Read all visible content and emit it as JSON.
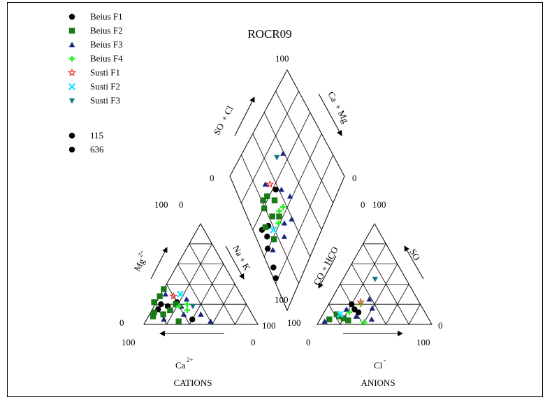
{
  "chart_data": {
    "type": "scatter",
    "subtype": "piper-diagram",
    "title": "ROCR09",
    "legend": {
      "placement": "top-left",
      "entries": [
        {
          "name": "Beius F1",
          "marker": "circle",
          "color": "#000000"
        },
        {
          "name": "Beius F2",
          "marker": "square",
          "color": "#1a7a1a"
        },
        {
          "name": "Beius F3",
          "marker": "triangle",
          "color": "#1a237e"
        },
        {
          "name": "Beius F4",
          "marker": "plus",
          "color": "#22ee22"
        },
        {
          "name": "Susti F1",
          "marker": "star",
          "color": "#ee2222"
        },
        {
          "name": "Susti F2",
          "marker": "x",
          "color": "#22e0ff"
        },
        {
          "name": "Susti F3",
          "marker": "triangle-down",
          "color": "#0f7a7a"
        },
        {
          "name": "115",
          "marker": "circle",
          "color": "#000000"
        },
        {
          "name": "636",
          "marker": "circle",
          "color": "#000000"
        }
      ]
    },
    "axis_labels": {
      "mg": "Mg",
      "mg_sup": "2+",
      "nak": "Na  + K",
      "ca": "Ca",
      "ca_sup": "2+",
      "cations": "CATIONS",
      "co3": "CO",
      "co3_tail": " + HCO",
      "so4": "SO",
      "cl": "Cl",
      "cl_sup": "-",
      "anions": "ANIONS",
      "so4cl": "SO",
      "so4cl_tail": " + Cl",
      "camg": "Ca",
      "camg_tail": " + Mg"
    },
    "tick_labels": {
      "cat_top": "100",
      "cat_top2": "0",
      "cat_left": "0",
      "cat_bottom_left": "100",
      "cat_bottom_right": "0",
      "cat_right": "100",
      "an_top": "0",
      "an_top2": "100",
      "an_left": "100",
      "an_left2": "100",
      "an_bottom_left": "0",
      "an_bottom_right": "100",
      "an_right": "0",
      "dia_top": "100",
      "dia_left": "0",
      "dia_right": "0"
    },
    "grid": true,
    "cation_points": [
      {
        "series": "Beius F1",
        "ca": 80,
        "mg": 15
      },
      {
        "series": "Beius F1",
        "ca": 70,
        "mg": 18
      },
      {
        "series": "Beius F1",
        "ca": 75,
        "mg": 20
      },
      {
        "series": "Beius F1",
        "ca": 60,
        "mg": 22
      },
      {
        "series": "Beius F1",
        "ca": 55,
        "mg": 5
      },
      {
        "series": "Beius F2",
        "ca": 88,
        "mg": 8
      },
      {
        "series": "Beius F2",
        "ca": 78,
        "mg": 10
      },
      {
        "series": "Beius F2",
        "ca": 80,
        "mg": 22
      },
      {
        "series": "Beius F2",
        "ca": 65,
        "mg": 35
      },
      {
        "series": "Beius F2",
        "ca": 72,
        "mg": 28
      },
      {
        "series": "Beius F2",
        "ca": 85,
        "mg": 12
      },
      {
        "series": "Beius F2",
        "ca": 70,
        "mg": 14
      },
      {
        "series": "Beius F2",
        "ca": 68,
        "mg": 3
      },
      {
        "series": "Beius F2",
        "ca": 62,
        "mg": 20
      },
      {
        "series": "Beius F3",
        "ca": 80,
        "mg": 5
      },
      {
        "series": "Beius F3",
        "ca": 66,
        "mg": 30
      },
      {
        "series": "Beius F3",
        "ca": 58,
        "mg": 18
      },
      {
        "series": "Beius F3",
        "ca": 50,
        "mg": 25
      },
      {
        "series": "Beius F3",
        "ca": 45,
        "mg": 10
      },
      {
        "series": "Beius F3",
        "ca": 40,
        "mg": 3
      },
      {
        "series": "Beius F3",
        "ca": 60,
        "mg": 10
      },
      {
        "series": "Beius F4",
        "ca": 60,
        "mg": 18
      },
      {
        "series": "Beius F4",
        "ca": 55,
        "mg": 14
      },
      {
        "series": "Beius F4",
        "ca": 52,
        "mg": 20
      },
      {
        "series": "Susti F1",
        "ca": 60,
        "mg": 28
      },
      {
        "series": "Susti F2",
        "ca": 53,
        "mg": 30
      },
      {
        "series": "Susti F3",
        "ca": 48,
        "mg": 18
      }
    ],
    "anion_points": [
      {
        "series": "Beius F1",
        "cl": 20,
        "so4": 20
      },
      {
        "series": "Beius F1",
        "cl": 25,
        "so4": 15
      },
      {
        "series": "Beius F1",
        "cl": 30,
        "so4": 12
      },
      {
        "series": "Beius F2",
        "cl": 8,
        "so4": 5
      },
      {
        "series": "Beius F2",
        "cl": 12,
        "so4": 10
      },
      {
        "series": "Beius F2",
        "cl": 15,
        "so4": 8
      },
      {
        "series": "Beius F2",
        "cl": 20,
        "so4": 6
      },
      {
        "series": "Beius F2",
        "cl": 25,
        "so4": 4
      },
      {
        "series": "Beius F3",
        "cl": 5,
        "so4": 3
      },
      {
        "series": "Beius F3",
        "cl": 18,
        "so4": 15
      },
      {
        "series": "Beius F3",
        "cl": 30,
        "so4": 8
      },
      {
        "series": "Beius F3",
        "cl": 40,
        "so4": 16
      },
      {
        "series": "Beius F3",
        "cl": 45,
        "so4": 5
      },
      {
        "series": "Beius F3",
        "cl": 33,
        "so4": 25
      },
      {
        "series": "Beius F4",
        "cl": 28,
        "so4": 20
      },
      {
        "series": "Beius F4",
        "cl": 22,
        "so4": 12
      },
      {
        "series": "Beius F4",
        "cl": 40,
        "so4": 2
      },
      {
        "series": "Susti F1",
        "cl": 27,
        "so4": 22
      },
      {
        "series": "Susti F2",
        "cl": 15,
        "so4": 10
      },
      {
        "series": "Susti F3",
        "cl": 28,
        "so4": 45
      }
    ],
    "diamond_points": [
      {
        "series": "Beius F1",
        "u": 0.06,
        "v": 0.4
      },
      {
        "series": "Beius F1",
        "u": 0.1,
        "v": 0.45
      },
      {
        "series": "Beius F1",
        "u": 0.15,
        "v": 0.48
      },
      {
        "series": "Beius F1",
        "u": 0.08,
        "v": 0.52
      },
      {
        "series": "Beius F1",
        "u": 0.35,
        "v": 0.55
      },
      {
        "series": "Beius F1",
        "u": 0.04,
        "v": 0.28
      },
      {
        "series": "Beius F1",
        "u": 0.02,
        "v": 0.22
      },
      {
        "series": "Beius F2",
        "u": 0.12,
        "v": 0.5
      },
      {
        "series": "Beius F2",
        "u": 0.2,
        "v": 0.62
      },
      {
        "series": "Beius F2",
        "u": 0.18,
        "v": 0.58
      },
      {
        "series": "Beius F2",
        "u": 0.22,
        "v": 0.48
      },
      {
        "series": "Beius F2",
        "u": 0.28,
        "v": 0.42
      },
      {
        "series": "Beius F2",
        "u": 0.15,
        "v": 0.38
      },
      {
        "series": "Beius F2",
        "u": 0.25,
        "v": 0.6
      },
      {
        "series": "Beius F2",
        "u": 0.3,
        "v": 0.52
      },
      {
        "series": "Beius F3",
        "u": 0.1,
        "v": 0.35
      },
      {
        "series": "Beius F3",
        "u": 0.28,
        "v": 0.66
      },
      {
        "series": "Beius F3",
        "u": 0.4,
        "v": 0.5
      },
      {
        "series": "Beius F3",
        "u": 0.45,
        "v": 0.4
      },
      {
        "series": "Beius F3",
        "u": 0.3,
        "v": 0.35
      },
      {
        "series": "Beius F3",
        "u": 0.38,
        "v": 0.3
      },
      {
        "series": "Beius F3",
        "u": 0.25,
        "v": 0.3
      },
      {
        "series": "Beius F3",
        "u": 0.55,
        "v": 0.62
      },
      {
        "series": "Beius F4",
        "u": 0.3,
        "v": 0.44
      },
      {
        "series": "Beius F4",
        "u": 0.25,
        "v": 0.4
      },
      {
        "series": "Beius F4",
        "u": 0.35,
        "v": 0.42
      },
      {
        "series": "Susti F1",
        "u": 0.32,
        "v": 0.62
      },
      {
        "series": "Susti F2",
        "u": 0.18,
        "v": 0.42
      },
      {
        "series": "Susti F3",
        "u": 0.48,
        "v": 0.66
      }
    ]
  }
}
